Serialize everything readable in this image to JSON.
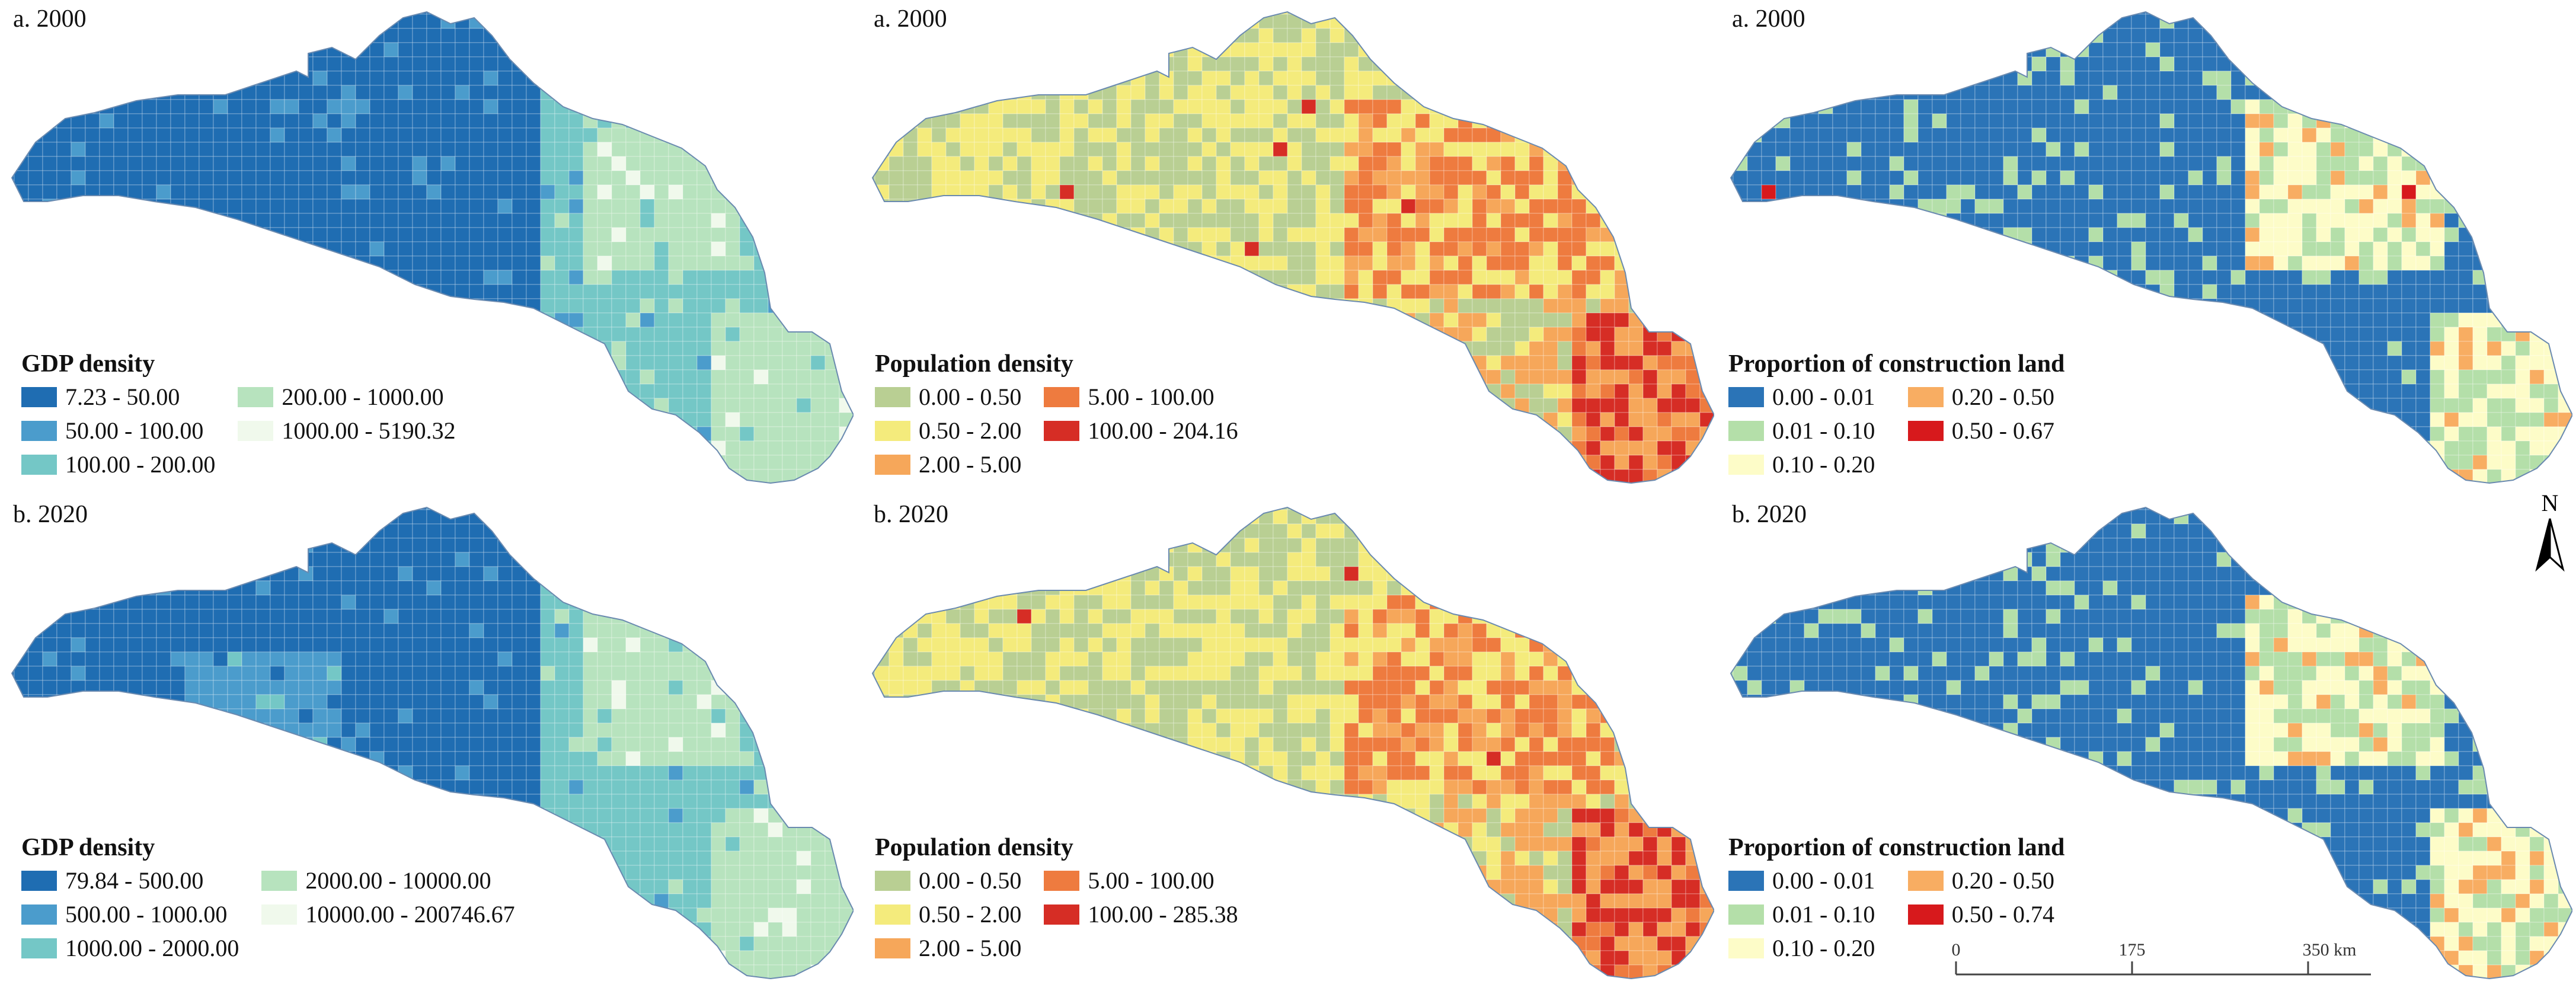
{
  "panels": [
    {
      "id": "gdp2000",
      "label": "a. 2000",
      "legend": {
        "title": "GDP density",
        "classes": [
          {
            "label": "7.23 - 50.00",
            "color": "#1f6db2"
          },
          {
            "label": "50.00 - 100.00",
            "color": "#4b9ccc"
          },
          {
            "label": "100.00 - 200.00",
            "color": "#74c7c6"
          },
          {
            "label": "200.00 - 1000.00",
            "color": "#b7e3be"
          },
          {
            "label": "1000.00 - 5190.32",
            "color": "#f0f9ec"
          }
        ]
      }
    },
    {
      "id": "pop2000",
      "label": "a. 2000",
      "legend": {
        "title": "Population density",
        "classes": [
          {
            "label": "0.00 - 0.50",
            "color": "#b9cf93"
          },
          {
            "label": "0.50 - 2.00",
            "color": "#f4eb7c"
          },
          {
            "label": "2.00 - 5.00",
            "color": "#f6a75a"
          },
          {
            "label": "5.00 - 100.00",
            "color": "#ee7b3f"
          },
          {
            "label": "100.00 - 204.16",
            "color": "#d62d25"
          }
        ]
      }
    },
    {
      "id": "con2000",
      "label": "a. 2000",
      "legend": {
        "title": "Proportion of construction land",
        "classes": [
          {
            "label": "0.00 - 0.01",
            "color": "#2b74b7"
          },
          {
            "label": "0.01 - 0.10",
            "color": "#b4dfa9"
          },
          {
            "label": "0.10 - 0.20",
            "color": "#fdfcc8"
          },
          {
            "label": "0.20 - 0.50",
            "color": "#f8ad62"
          },
          {
            "label": "0.50 - 0.67",
            "color": "#d7191c"
          }
        ]
      }
    },
    {
      "id": "gdp2020",
      "label": "b. 2020",
      "legend": {
        "title": "GDP density",
        "classes": [
          {
            "label": "79.84 - 500.00",
            "color": "#1f6db2"
          },
          {
            "label": "500.00 - 1000.00",
            "color": "#4b9ccc"
          },
          {
            "label": "1000.00 - 2000.00",
            "color": "#74c7c6"
          },
          {
            "label": "2000.00 - 10000.00",
            "color": "#b7e3be"
          },
          {
            "label": "10000.00 - 200746.67",
            "color": "#f0f9ec"
          }
        ]
      }
    },
    {
      "id": "pop2020",
      "label": "b. 2020",
      "legend": {
        "title": "Population density",
        "classes": [
          {
            "label": "0.00 - 0.50",
            "color": "#b9cf93"
          },
          {
            "label": "0.50 - 2.00",
            "color": "#f4eb7c"
          },
          {
            "label": "2.00 - 5.00",
            "color": "#f6a75a"
          },
          {
            "label": "5.00 - 100.00",
            "color": "#ee7b3f"
          },
          {
            "label": "100.00 - 285.38",
            "color": "#d62d25"
          }
        ]
      }
    },
    {
      "id": "con2020",
      "label": "b. 2020",
      "legend": {
        "title": "Proportion of construction land",
        "classes": [
          {
            "label": "0.00 - 0.01",
            "color": "#2b74b7"
          },
          {
            "label": "0.01 - 0.10",
            "color": "#b4dfa9"
          },
          {
            "label": "0.10 - 0.20",
            "color": "#fdfcc8"
          },
          {
            "label": "0.20 - 0.50",
            "color": "#f8ad62"
          },
          {
            "label": "0.50 - 0.74",
            "color": "#d7191c"
          }
        ]
      }
    }
  ],
  "north_arrow": {
    "label": "N"
  },
  "scale_bar": {
    "ticks": [
      "0",
      "175",
      "350 km"
    ]
  }
}
